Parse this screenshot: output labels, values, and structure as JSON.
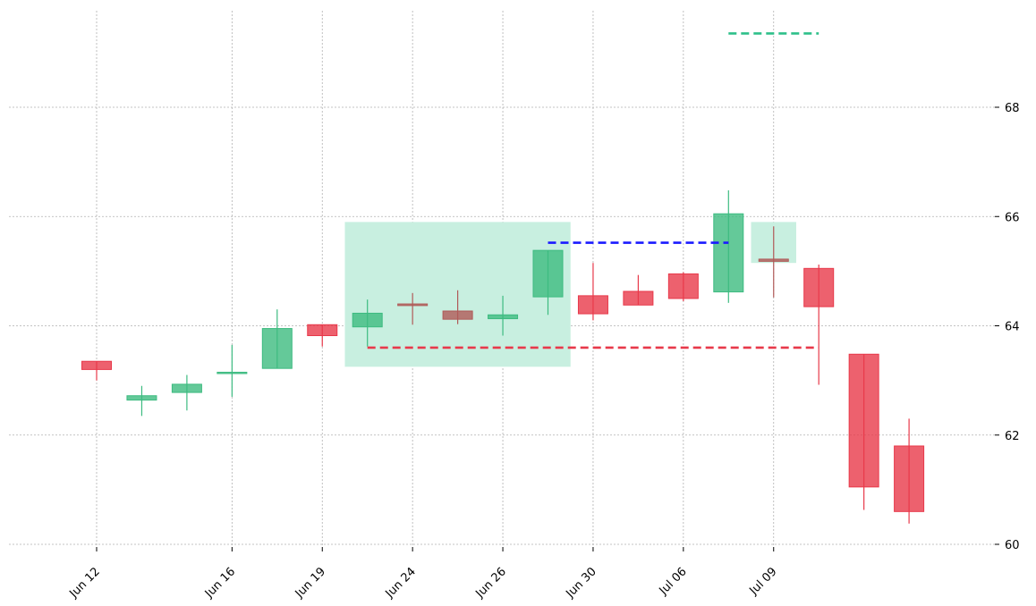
{
  "chart_data": {
    "type": "candlestick",
    "title": "",
    "xlabel": "",
    "ylabel": "",
    "ylim": [
      59.95,
      69.6
    ],
    "grid": true,
    "y_axis_position": "right",
    "x_tick_labels": [
      {
        "index": 0,
        "label": "Jun 12"
      },
      {
        "index": 3,
        "label": "Jun 16"
      },
      {
        "index": 5,
        "label": "Jun 19"
      },
      {
        "index": 7,
        "label": "Jun 24"
      },
      {
        "index": 9,
        "label": "Jun 26"
      },
      {
        "index": 11,
        "label": "Jun 30"
      },
      {
        "index": 13,
        "label": "Jul 06"
      },
      {
        "index": 15,
        "label": "Jul 09"
      }
    ],
    "y_ticks": [
      60,
      62,
      64,
      66,
      68
    ],
    "candles": [
      {
        "open": 63.35,
        "high": 63.35,
        "low": 63.0,
        "close": 63.2,
        "color": "#e8394a"
      },
      {
        "open": 62.64,
        "high": 62.9,
        "low": 62.35,
        "close": 62.72,
        "color": "#3dbb80"
      },
      {
        "open": 62.78,
        "high": 63.1,
        "low": 62.45,
        "close": 62.93,
        "color": "#3dbb80"
      },
      {
        "open": 63.15,
        "high": 63.65,
        "low": 62.7,
        "close": 63.15,
        "color": "#3dbb80"
      },
      {
        "open": 63.22,
        "high": 64.3,
        "low": 63.22,
        "close": 63.95,
        "color": "#3dbb80"
      },
      {
        "open": 64.02,
        "high": 64.02,
        "low": 63.62,
        "close": 63.82,
        "color": "#e8394a"
      },
      {
        "open": 63.98,
        "high": 64.48,
        "low": 63.62,
        "close": 64.23,
        "color": "#3dbb80"
      },
      {
        "open": 64.4,
        "high": 64.6,
        "low": 64.02,
        "close": 64.37,
        "color": "#b05a58"
      },
      {
        "open": 64.27,
        "high": 64.65,
        "low": 64.03,
        "close": 64.12,
        "color": "#b05a58"
      },
      {
        "open": 64.13,
        "high": 64.55,
        "low": 63.82,
        "close": 64.2,
        "color": "#3dbb80"
      },
      {
        "open": 64.53,
        "high": 65.38,
        "low": 64.2,
        "close": 65.38,
        "color": "#3dbb80"
      },
      {
        "open": 64.55,
        "high": 65.15,
        "low": 64.1,
        "close": 64.22,
        "color": "#e8394a"
      },
      {
        "open": 64.63,
        "high": 64.93,
        "low": 64.38,
        "close": 64.38,
        "color": "#e8394a"
      },
      {
        "open": 64.95,
        "high": 64.98,
        "low": 64.45,
        "close": 64.5,
        "color": "#e8394a"
      },
      {
        "open": 64.62,
        "high": 66.48,
        "low": 64.42,
        "close": 66.05,
        "color": "#3dbb80"
      },
      {
        "open": 65.22,
        "high": 65.82,
        "low": 64.52,
        "close": 65.18,
        "color": "#b05a58"
      },
      {
        "open": 65.05,
        "high": 65.12,
        "low": 62.92,
        "close": 64.35,
        "color": "#e8394a"
      },
      {
        "open": 63.48,
        "high": 63.48,
        "low": 60.63,
        "close": 61.05,
        "color": "#e8394a"
      },
      {
        "open": 61.8,
        "high": 62.3,
        "low": 60.38,
        "close": 60.6,
        "color": "#e8394a"
      }
    ],
    "zones": [
      {
        "x_from": 5.5,
        "x_to": 10.5,
        "y_from": 63.25,
        "y_to": 65.9,
        "color": "#c8efe0"
      },
      {
        "x_from": 14.5,
        "x_to": 15.5,
        "y_from": 65.15,
        "y_to": 65.9,
        "color": "#c8efe0"
      }
    ],
    "levels": [
      {
        "x_from": 6.0,
        "x_to": 16.0,
        "y": 63.6,
        "color": "#e8394a"
      },
      {
        "x_from": 10.0,
        "x_to": 14.0,
        "y": 65.52,
        "color": "#1a1aff"
      },
      {
        "x_from": 14.0,
        "x_to": 16.0,
        "y": 69.35,
        "color": "#2ec08a"
      }
    ]
  }
}
